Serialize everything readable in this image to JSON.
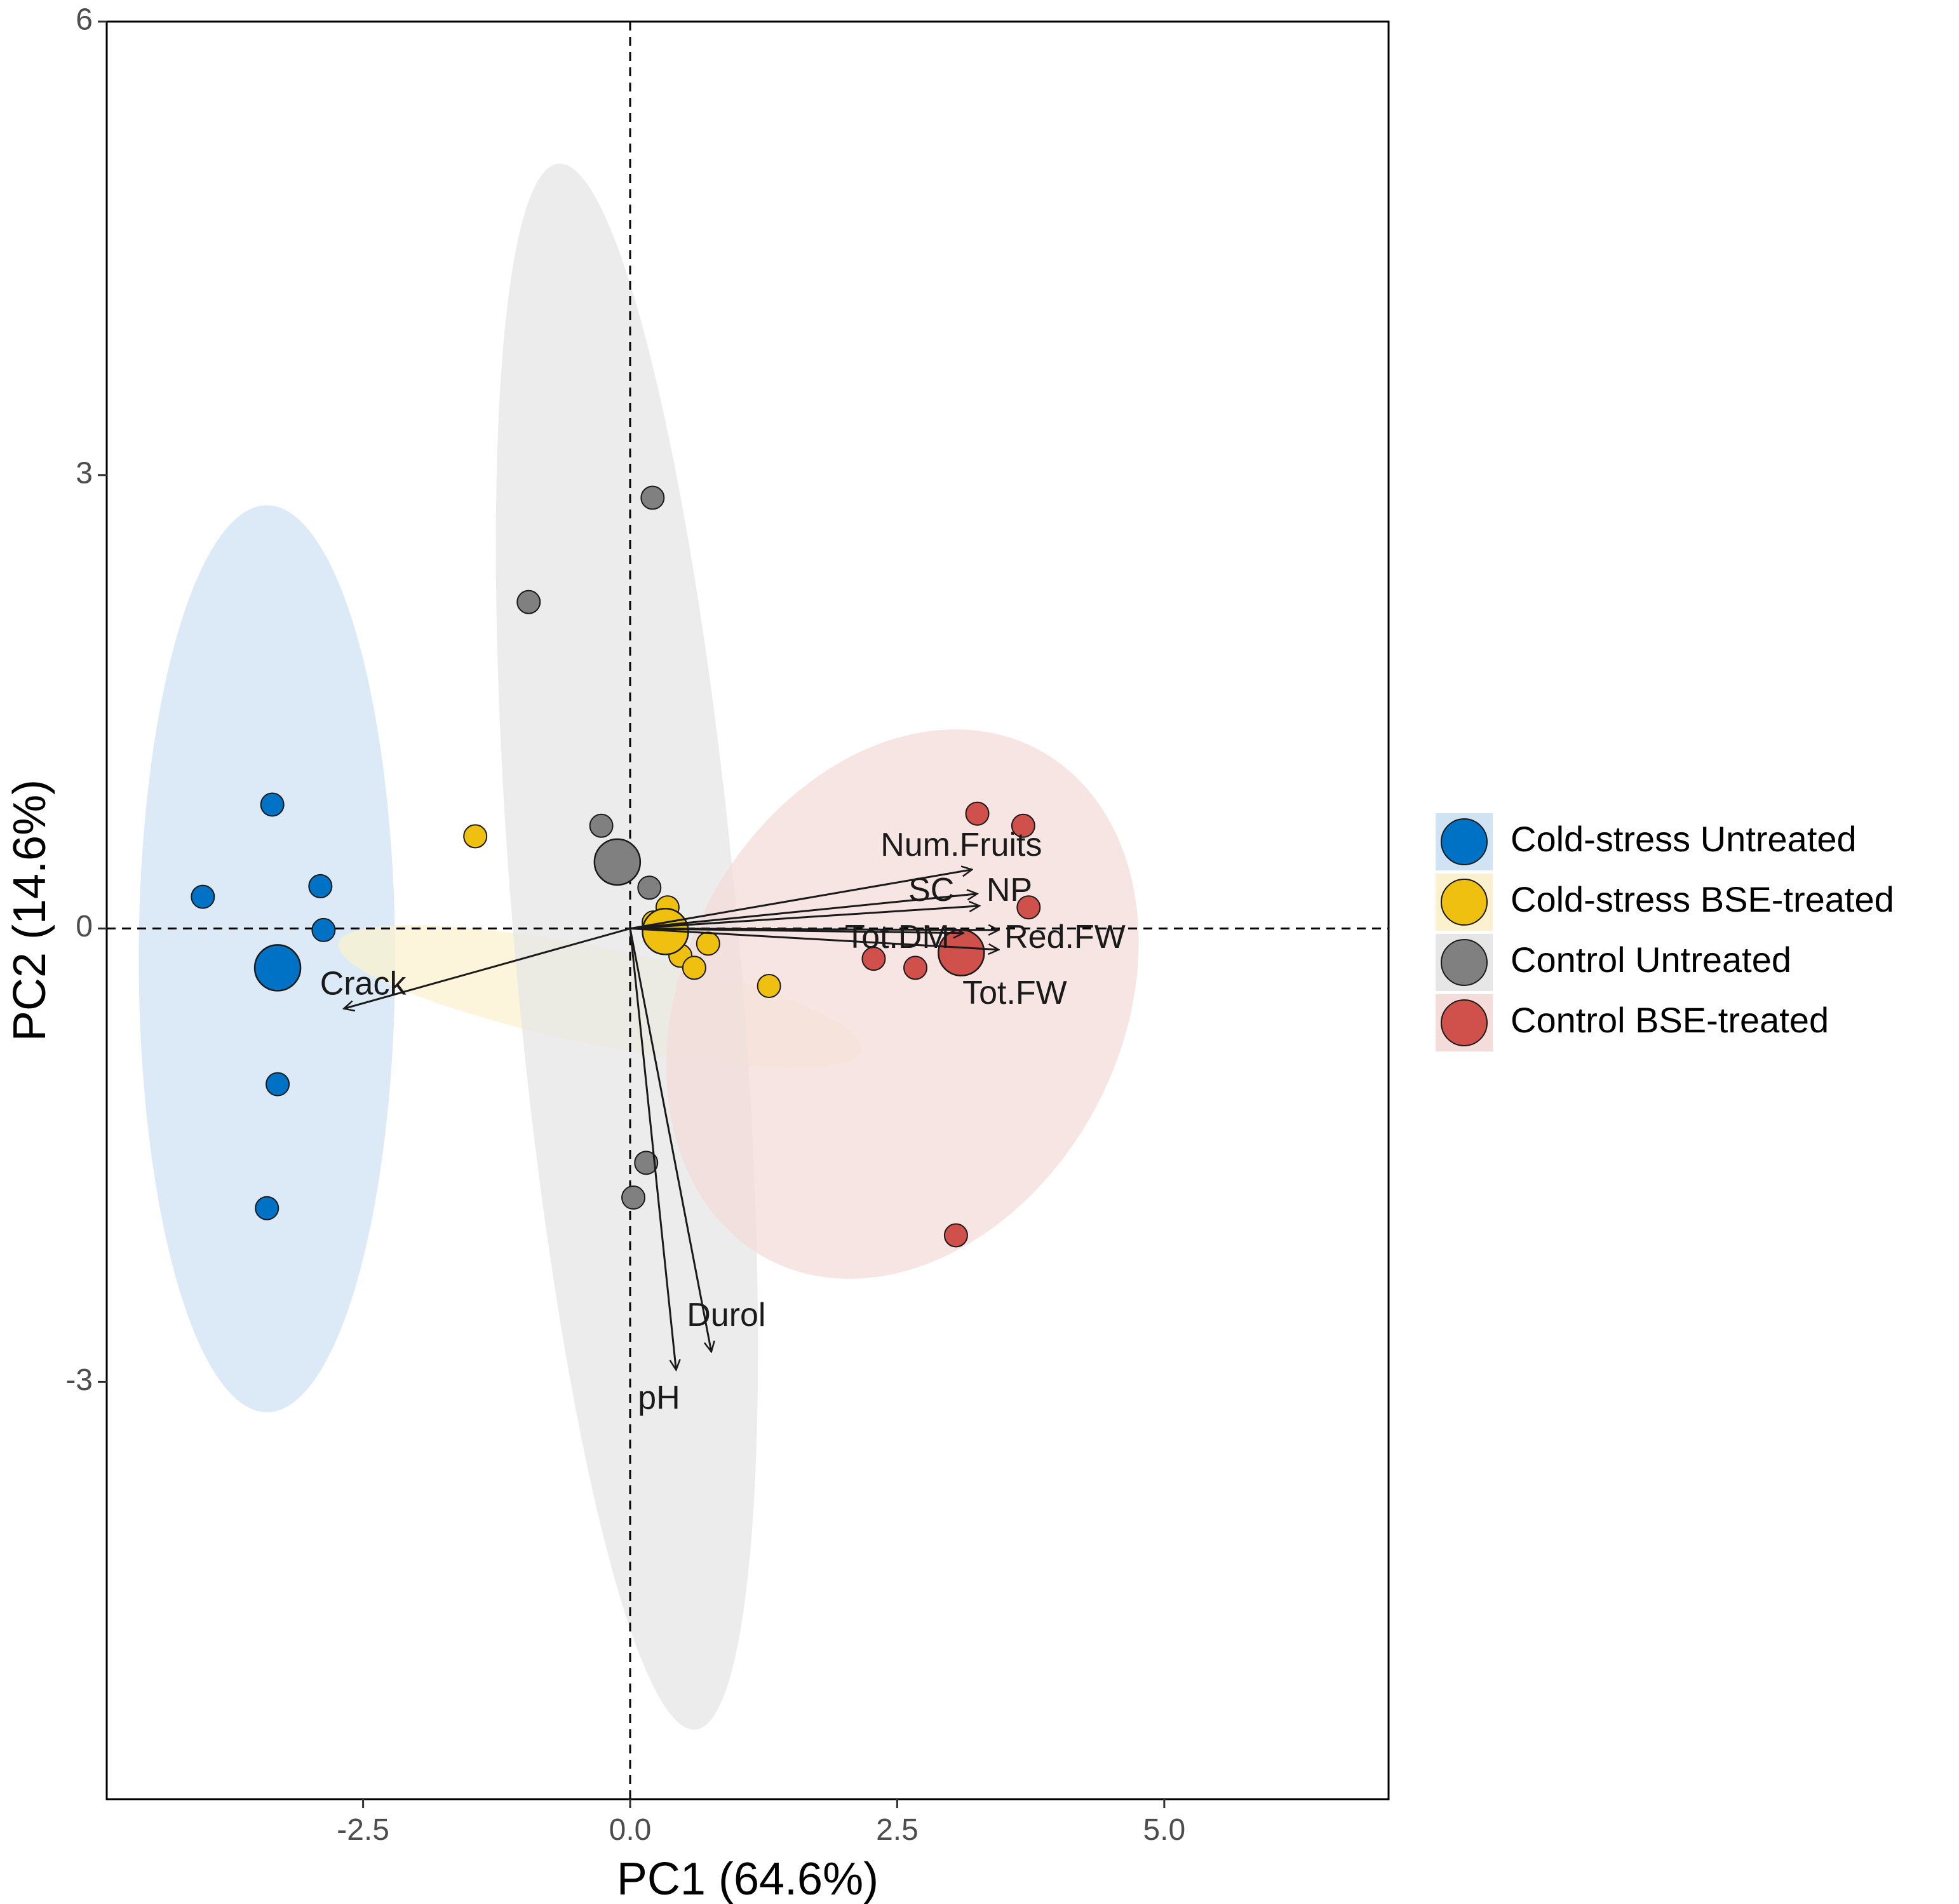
{
  "chart_data": {
    "type": "scatter",
    "subtype": "pca-biplot",
    "title": "",
    "xlabel": "PC1 (64.6%)",
    "ylabel": "PC2 (14.6%)",
    "xlim": [
      -4.9,
      7.1
    ],
    "ylim": [
      -5.76,
      6.0
    ],
    "x_ticks": [
      -2.5,
      0.0,
      2.5,
      5.0
    ],
    "x_tick_labels": [
      "-2.5",
      "0.0",
      "2.5",
      "5.0"
    ],
    "y_ticks": [
      -3,
      0,
      3,
      6
    ],
    "y_tick_labels": [
      "-3",
      "0",
      "3",
      "6"
    ],
    "grid": false,
    "reference_lines": {
      "x": 0,
      "y": 0,
      "style": "dashed"
    },
    "legend_position": "right",
    "groups": [
      {
        "name": "Cold-stress Untreated",
        "color": "#0072c6",
        "ellipse_color": "#cfe3f3",
        "ellipse": {
          "center": [
            -3.4,
            -0.2
          ],
          "semi_axes": [
            1.2,
            3.0
          ],
          "angle_deg": 0
        },
        "centroid": [
          -3.3,
          -0.26
        ],
        "points": [
          [
            -3.35,
            0.82
          ],
          [
            -4.0,
            0.21
          ],
          [
            -2.9,
            0.28
          ],
          [
            -2.87,
            -0.01
          ],
          [
            -3.3,
            -1.03
          ],
          [
            -3.4,
            -1.85
          ]
        ]
      },
      {
        "name": "Cold-stress BSE-treated",
        "color": "#f0c010",
        "ellipse_color": "#fbf1cf",
        "ellipse": {
          "center": [
            -0.28,
            -0.45
          ],
          "semi_axes": [
            2.5,
            0.32
          ],
          "angle_deg": -11.5
        },
        "centroid": [
          0.33,
          -0.02
        ],
        "points": [
          [
            -1.45,
            0.61
          ],
          [
            0.35,
            0.14
          ],
          [
            0.22,
            0.04
          ],
          [
            0.73,
            -0.1
          ],
          [
            0.47,
            -0.18
          ],
          [
            0.6,
            -0.26
          ],
          [
            1.3,
            -0.38
          ]
        ]
      },
      {
        "name": "Control Untreated",
        "color": "#808080",
        "ellipse_color": "#e6e6e6",
        "ellipse": {
          "center": [
            -0.03,
            -0.12
          ],
          "semi_axes": [
            1.05,
            5.2
          ],
          "angle_deg": 5
        },
        "centroid": [
          -0.12,
          0.44
        ],
        "points": [
          [
            0.21,
            2.85
          ],
          [
            -0.95,
            2.16
          ],
          [
            -0.27,
            0.68
          ],
          [
            0.18,
            0.27
          ],
          [
            0.15,
            -1.55
          ],
          [
            0.03,
            -1.78
          ]
        ]
      },
      {
        "name": "Control BSE-treated",
        "color": "#d0504c",
        "ellipse_color": "#f4dcdb",
        "ellipse": {
          "center": [
            2.55,
            -0.5
          ],
          "semi_axes": [
            2.7,
            1.45
          ],
          "angle_deg": 62
        },
        "centroid": [
          3.1,
          -0.16
        ],
        "points": [
          [
            3.25,
            0.76
          ],
          [
            3.68,
            0.68
          ],
          [
            3.73,
            0.14
          ],
          [
            2.28,
            -0.2
          ],
          [
            2.67,
            -0.26
          ],
          [
            3.05,
            -2.03
          ]
        ]
      }
    ],
    "loadings": [
      {
        "label": "Num.Fruits",
        "x": 3.2,
        "y": 0.39,
        "label_x": 3.1,
        "label_y": 0.54
      },
      {
        "label": "SC",
        "x": 3.25,
        "y": 0.23,
        "label_x": 2.82,
        "label_y": 0.24
      },
      {
        "label": "NP",
        "x": 3.27,
        "y": 0.15,
        "label_x": 3.55,
        "label_y": 0.24
      },
      {
        "label": "Tot.DM",
        "x": 3.12,
        "y": -0.03,
        "label_x": 2.5,
        "label_y": -0.07
      },
      {
        "label": "Red.FW",
        "x": 3.45,
        "y": -0.01,
        "label_x": 4.07,
        "label_y": -0.07
      },
      {
        "label": "Tot.FW",
        "x": 3.45,
        "y": -0.14,
        "label_x": 3.6,
        "label_y": -0.44
      },
      {
        "label": "Crack",
        "x": -2.68,
        "y": -0.53,
        "label_x": -2.5,
        "label_y": -0.38
      },
      {
        "label": "Durol",
        "x": 0.76,
        "y": -2.8,
        "label_x": 0.9,
        "label_y": -2.57
      },
      {
        "label": "pH",
        "x": 0.43,
        "y": -2.92,
        "label_x": 0.27,
        "label_y": -3.12
      }
    ]
  },
  "legend": {
    "items": [
      {
        "label": "Cold-stress Untreated",
        "color": "#0072c6",
        "key_bg": "#cfe3f3"
      },
      {
        "label": "Cold-stress BSE-treated",
        "color": "#f0c010",
        "key_bg": "#fbf1cf"
      },
      {
        "label": "Control Untreated",
        "color": "#808080",
        "key_bg": "#e6e6e6"
      },
      {
        "label": "Control BSE-treated",
        "color": "#d0504c",
        "key_bg": "#f4dcdb"
      }
    ]
  }
}
